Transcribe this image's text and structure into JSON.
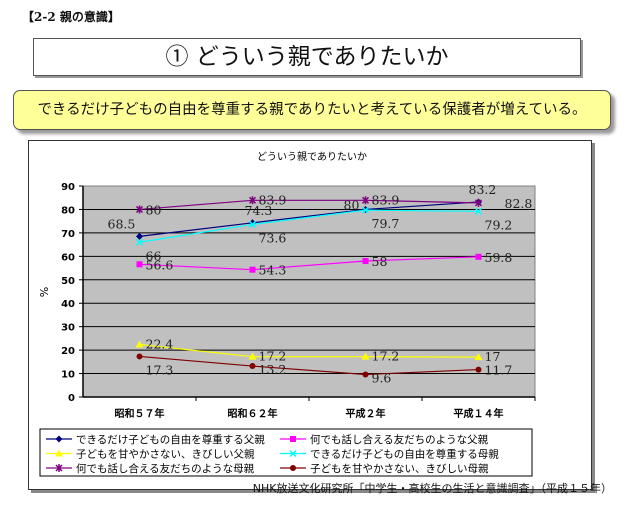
{
  "section_label": "【2-2 親の意識】",
  "page_title": "① どういう親でありたいか",
  "callout": "できるだけ子どもの自由を尊重する親でありたいと考えている保護者が増えている。",
  "source": "NHK放送文化研究所「中学生・高校生の生活と意識調査」（平成１５年）",
  "chart_data": {
    "type": "line",
    "title": "どういう親でありたいか",
    "xlabel": "",
    "ylabel": "%",
    "ylim": [
      0,
      90
    ],
    "yticks": [
      0,
      10,
      20,
      30,
      40,
      50,
      60,
      70,
      80,
      90
    ],
    "categories": [
      "昭和５７年",
      "昭和６２年",
      "平成２年",
      "平成１４年"
    ],
    "grid": true,
    "legend_position": "bottom",
    "series": [
      {
        "name": "できるだけ子どもの自由を尊重する父親",
        "color": "#000080",
        "marker": "diamond",
        "values": [
          68.5,
          74.3,
          80,
          83.2
        ]
      },
      {
        "name": "何でも話し合える友だちのような父親",
        "color": "#ff00ff",
        "marker": "square",
        "values": [
          56.6,
          54.3,
          58,
          59.8
        ]
      },
      {
        "name": "子どもを甘やかさない、きびしい父親",
        "color": "#ffff00",
        "marker": "triangle",
        "values": [
          22.4,
          17.2,
          17.2,
          17
        ]
      },
      {
        "name": "できるだけ子どもの自由を尊重する母親",
        "color": "#00ffff",
        "marker": "x",
        "values": [
          66,
          73.6,
          79.7,
          79.2
        ]
      },
      {
        "name": "何でも話し合える友だちのような母親",
        "color": "#800080",
        "marker": "star",
        "values": [
          80,
          83.9,
          83.9,
          82.8
        ]
      },
      {
        "name": "子どもを甘やかさない、きびしい母親",
        "color": "#800000",
        "marker": "circle",
        "values": [
          17.3,
          13.2,
          9.6,
          11.7
        ]
      }
    ]
  }
}
